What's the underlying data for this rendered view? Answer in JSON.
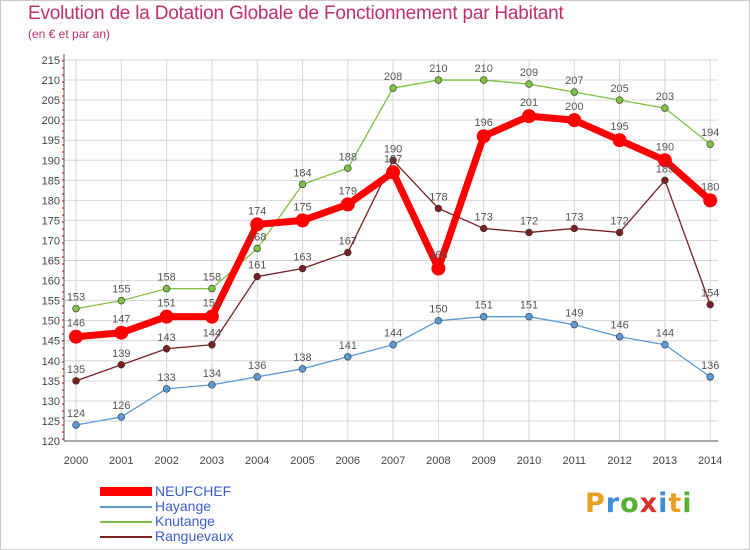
{
  "title": "Evolution de la Dotation Globale de Fonctionnement par Habitant",
  "subtitle": "(en € et par an)",
  "logo": {
    "letters": [
      "P",
      "r",
      "o",
      "x",
      "i",
      "t",
      "i"
    ],
    "colors": [
      "#e8a020",
      "#3a8fd8",
      "#58b030",
      "#d83028",
      "#3a8fd8",
      "#e8a020",
      "#58b030"
    ]
  },
  "chart_data": {
    "type": "line",
    "title": "Evolution de la Dotation Globale de Fonctionnement par Habitant",
    "subtitle": "(en € et par an)",
    "x": [
      "2000",
      "2001",
      "2002",
      "2003",
      "2004",
      "2005",
      "2006",
      "2007",
      "2008",
      "2009",
      "2010",
      "2011",
      "2012",
      "2013",
      "2014"
    ],
    "ylim": [
      120,
      215
    ],
    "yticks": [
      120,
      125,
      130,
      135,
      140,
      145,
      150,
      155,
      160,
      165,
      170,
      175,
      180,
      185,
      190,
      195,
      200,
      205,
      210,
      215
    ],
    "grid": true,
    "legend": "bottom-left",
    "series": [
      {
        "name": "Hayange",
        "color": "#5b9bd5",
        "values": [
          124,
          126,
          133,
          134,
          136,
          138,
          141,
          144,
          150,
          151,
          151,
          149,
          146,
          144,
          136
        ],
        "labels": [
          "124",
          "126",
          "133",
          "134",
          "136",
          "138",
          "141",
          "144",
          "150",
          "151",
          "151",
          "149",
          "146",
          "144",
          "136"
        ]
      },
      {
        "name": "Knutange",
        "color": "#7dc242",
        "values": [
          153,
          155,
          158,
          158,
          168,
          184,
          188,
          208,
          210,
          210,
          209,
          207,
          205,
          203,
          194
        ],
        "labels": [
          "153",
          "155",
          "158",
          "158",
          "168",
          "184",
          "188",
          "208",
          "210",
          "210",
          "209",
          "207",
          "205",
          "203",
          "194"
        ]
      },
      {
        "name": "Ranguevaux",
        "color": "#7b2020",
        "values": [
          135,
          139,
          143,
          144,
          161,
          163,
          167,
          190,
          178,
          173,
          172,
          173,
          172,
          185,
          154
        ],
        "labels": [
          "135",
          "139",
          "143",
          "144",
          "161",
          "163",
          "167",
          "190",
          "178",
          "173",
          "172",
          "173",
          "172",
          "185",
          "154"
        ]
      },
      {
        "name": "NEUFCHEF",
        "color": "#ff0000",
        "values": [
          146,
          147,
          151,
          151,
          174,
          175,
          179,
          187,
          163,
          196,
          201,
          200,
          195,
          190,
          180
        ],
        "labels": [
          "146",
          "147",
          "151",
          "151",
          "174",
          "175",
          "179",
          "187",
          "163",
          "196",
          "201",
          "200",
          "195",
          "190",
          "180"
        ]
      }
    ],
    "legend_order": [
      "NEUFCHEF",
      "Hayange",
      "Knutange",
      "Ranguevaux"
    ]
  }
}
